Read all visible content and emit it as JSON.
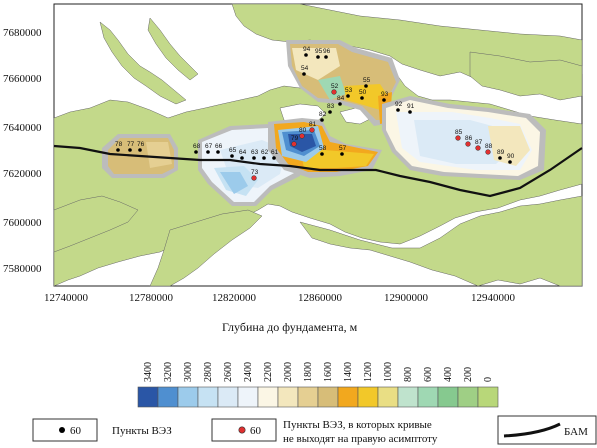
{
  "map": {
    "x_ticks": [
      "12740000",
      "12780000",
      "12820000",
      "12860000",
      "12900000",
      "12940000"
    ],
    "y_ticks": [
      "7680000",
      "7660000",
      "7640000",
      "7620000",
      "7600000",
      "7580000"
    ],
    "points_black": [
      {
        "id": "94"
      },
      {
        "id": "95"
      },
      {
        "id": "96"
      },
      {
        "id": "54"
      },
      {
        "id": "55"
      },
      {
        "id": "53"
      },
      {
        "id": "50"
      },
      {
        "id": "93"
      },
      {
        "id": "84"
      },
      {
        "id": "83"
      },
      {
        "id": "82"
      },
      {
        "id": "92"
      },
      {
        "id": "91"
      },
      {
        "id": "58"
      },
      {
        "id": "57"
      },
      {
        "id": "78"
      },
      {
        "id": "77"
      },
      {
        "id": "76"
      },
      {
        "id": "68"
      },
      {
        "id": "67"
      },
      {
        "id": "66"
      },
      {
        "id": "65"
      },
      {
        "id": "64"
      },
      {
        "id": "63"
      },
      {
        "id": "62"
      },
      {
        "id": "61"
      },
      {
        "id": "89"
      },
      {
        "id": "90"
      }
    ],
    "points_red": [
      {
        "id": "52"
      },
      {
        "id": "81"
      },
      {
        "id": "80"
      },
      {
        "id": "79"
      },
      {
        "id": "73"
      },
      {
        "id": "85"
      },
      {
        "id": "86"
      },
      {
        "id": "87"
      },
      {
        "id": "88"
      }
    ]
  },
  "axis_title": "Глубина до фундамента, м",
  "colorbar": {
    "values": [
      "3400",
      "3200",
      "3000",
      "2800",
      "2600",
      "2400",
      "2200",
      "2000",
      "1800",
      "1600",
      "1400",
      "1200",
      "1000",
      "800",
      "600",
      "400",
      "200",
      "0"
    ],
    "colors": [
      "#2a56a6",
      "#4f8fd0",
      "#9ccbeb",
      "#c6e2f3",
      "#dbeaf6",
      "#eef4fa",
      "#fbf6e5",
      "#f3e7bd",
      "#e5cf92",
      "#d7bd78",
      "#f2a81e",
      "#f2c829",
      "#e9de84",
      "#bfe3cd",
      "#9fd8b3",
      "#86c98f",
      "#9fcf85",
      "#b8d779"
    ]
  },
  "legend": {
    "black_value": "60",
    "black_label": "Пункты ВЭЗ",
    "red_value": "60",
    "red_label_1": "Пункты ВЭЗ, в которых кривые",
    "red_label_2": "не выходят на правую асимптоту",
    "line_label": "БАМ"
  },
  "colors": {
    "land": "#c3d98a",
    "water": "#ffffff",
    "contour_gray": "#a6a6a6",
    "bam": "#111111"
  }
}
